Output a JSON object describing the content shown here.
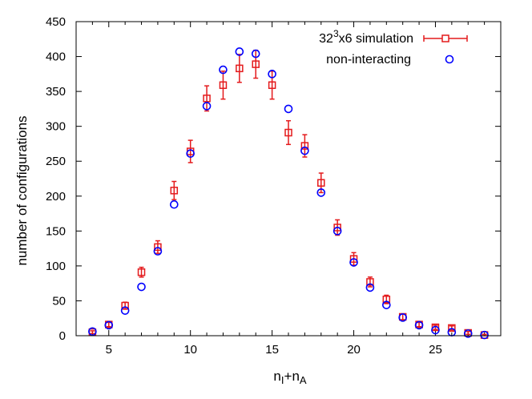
{
  "chart_data": {
    "type": "scatter",
    "title": "",
    "xlabel": "n_I+n_A",
    "ylabel": "number of configurations",
    "xlim": [
      3,
      29
    ],
    "ylim": [
      0,
      450
    ],
    "xticks": [
      5,
      10,
      15,
      20,
      25
    ],
    "yticks": [
      0,
      50,
      100,
      150,
      200,
      250,
      300,
      350,
      400,
      450
    ],
    "xlabel_parts": {
      "n1": "n",
      "s1": "I",
      "plus": "+",
      "n2": "n",
      "s2": "A"
    },
    "series": [
      {
        "name": "32^3x6 simulation",
        "legend": {
          "base": "32",
          "sup": "3",
          "rest": "x6 simulation"
        },
        "color": "#e41a1c",
        "marker": "square",
        "errorbars": true,
        "points": [
          {
            "x": 4,
            "y": 5,
            "err": 2
          },
          {
            "x": 5,
            "y": 16,
            "err": 3
          },
          {
            "x": 6,
            "y": 43,
            "err": 5
          },
          {
            "x": 7,
            "y": 91,
            "err": 7
          },
          {
            "x": 8,
            "y": 127,
            "err": 9
          },
          {
            "x": 9,
            "y": 208,
            "err": 13
          },
          {
            "x": 10,
            "y": 264,
            "err": 16
          },
          {
            "x": 11,
            "y": 340,
            "err": 18
          },
          {
            "x": 12,
            "y": 359,
            "err": 20
          },
          {
            "x": 13,
            "y": 383,
            "err": 20
          },
          {
            "x": 14,
            "y": 389,
            "err": 20
          },
          {
            "x": 15,
            "y": 359,
            "err": 20
          },
          {
            "x": 16,
            "y": 291,
            "err": 17
          },
          {
            "x": 17,
            "y": 272,
            "err": 16
          },
          {
            "x": 18,
            "y": 219,
            "err": 14
          },
          {
            "x": 19,
            "y": 155,
            "err": 11
          },
          {
            "x": 20,
            "y": 110,
            "err": 9
          },
          {
            "x": 21,
            "y": 77,
            "err": 7
          },
          {
            "x": 22,
            "y": 52,
            "err": 6
          },
          {
            "x": 23,
            "y": 27,
            "err": 4
          },
          {
            "x": 24,
            "y": 16,
            "err": 3
          },
          {
            "x": 25,
            "y": 12,
            "err": 3
          },
          {
            "x": 26,
            "y": 11,
            "err": 3
          },
          {
            "x": 27,
            "y": 4,
            "err": 2
          },
          {
            "x": 28,
            "y": 1,
            "err": 1
          }
        ]
      },
      {
        "name": "non-interacting",
        "legend": {
          "base": "non-interacting",
          "sup": "",
          "rest": ""
        },
        "color": "#0000ff",
        "marker": "circle",
        "errorbars": false,
        "points": [
          {
            "x": 4,
            "y": 6
          },
          {
            "x": 5,
            "y": 15
          },
          {
            "x": 6,
            "y": 36
          },
          {
            "x": 7,
            "y": 70
          },
          {
            "x": 8,
            "y": 121
          },
          {
            "x": 9,
            "y": 188
          },
          {
            "x": 10,
            "y": 261
          },
          {
            "x": 11,
            "y": 329
          },
          {
            "x": 12,
            "y": 381
          },
          {
            "x": 13,
            "y": 407
          },
          {
            "x": 14,
            "y": 404
          },
          {
            "x": 15,
            "y": 375
          },
          {
            "x": 16,
            "y": 325
          },
          {
            "x": 17,
            "y": 265
          },
          {
            "x": 18,
            "y": 205
          },
          {
            "x": 19,
            "y": 150
          },
          {
            "x": 20,
            "y": 105
          },
          {
            "x": 21,
            "y": 69
          },
          {
            "x": 22,
            "y": 44
          },
          {
            "x": 23,
            "y": 26
          },
          {
            "x": 24,
            "y": 15
          },
          {
            "x": 25,
            "y": 8
          },
          {
            "x": 26,
            "y": 5
          },
          {
            "x": 27,
            "y": 3
          },
          {
            "x": 28,
            "y": 1
          }
        ]
      }
    ],
    "legend_position": "top-right",
    "grid": false
  }
}
